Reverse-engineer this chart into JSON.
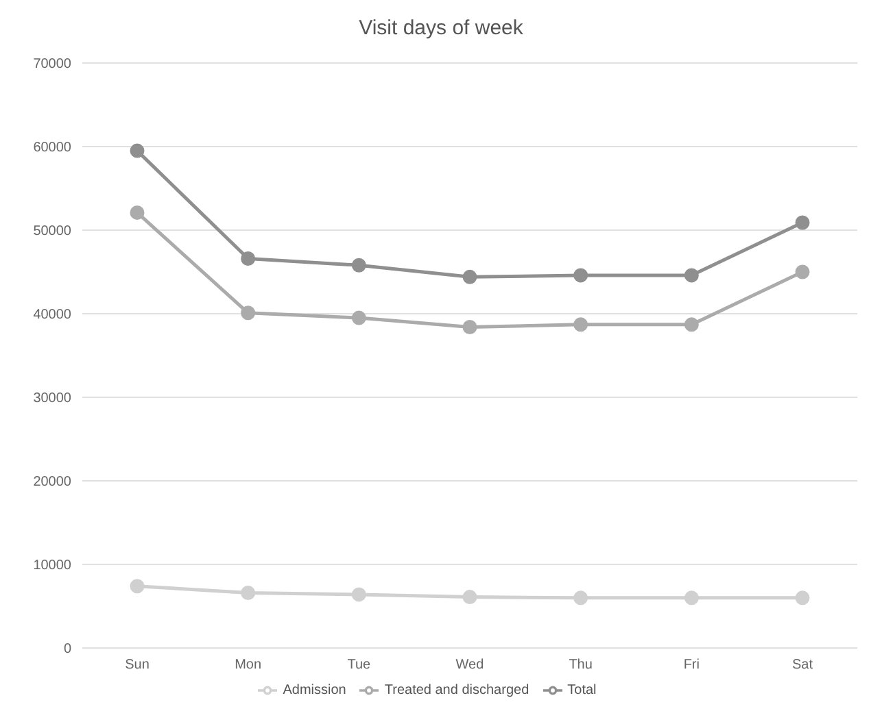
{
  "chart_data": {
    "type": "line",
    "title": "Visit days of week",
    "categories": [
      "Sun",
      "Mon",
      "Tue",
      "Wed",
      "Thu",
      "Fri",
      "Sat"
    ],
    "series": [
      {
        "name": "Admission",
        "color": "#d0d0d0",
        "values": [
          7400,
          6600,
          6400,
          6100,
          6000,
          6000,
          6000
        ]
      },
      {
        "name": "Treated and discharged",
        "color": "#ababab",
        "values": [
          52100,
          40100,
          39500,
          38400,
          38700,
          38700,
          45000
        ]
      },
      {
        "name": "Total",
        "color": "#8f8f8f",
        "values": [
          59500,
          46600,
          45800,
          44400,
          44600,
          44600,
          50900
        ]
      }
    ],
    "ylim": [
      0,
      70000
    ],
    "yticks": [
      0,
      10000,
      20000,
      30000,
      40000,
      50000,
      60000,
      70000
    ],
    "grid": "y",
    "legend": "bottom",
    "marker": "circle",
    "line_style": "solid"
  }
}
